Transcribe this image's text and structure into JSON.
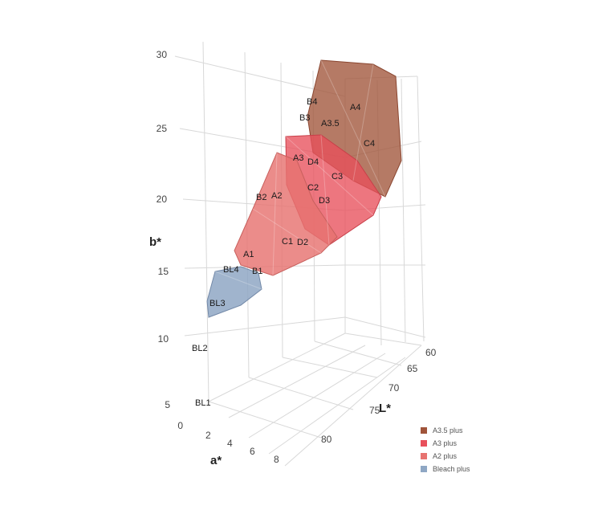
{
  "chart_data": {
    "type": "scatter3d",
    "axes": {
      "b": {
        "label": "b*",
        "ticks": [
          "30",
          "25",
          "20",
          "15",
          "10",
          "5",
          "0"
        ]
      },
      "L": {
        "label": "L*",
        "ticks": [
          "60",
          "65",
          "70",
          "75",
          "80"
        ]
      },
      "a": {
        "label": "a*",
        "ticks": [
          "2",
          "4",
          "6",
          "8"
        ]
      }
    },
    "series": [
      {
        "name": "A3.5 plus",
        "color": "#a0543a",
        "shades": [
          "B4",
          "A4",
          "B3",
          "A3.5",
          "C4"
        ]
      },
      {
        "name": "A3 plus",
        "color": "#e8505b",
        "shades": [
          "A3",
          "D4",
          "C3",
          "C2",
          "D3"
        ]
      },
      {
        "name": "A2 plus",
        "color": "#e77370",
        "shades": [
          "B2",
          "A2",
          "C1",
          "D2",
          "A1",
          "B1",
          "BL4"
        ]
      },
      {
        "name": "Bleach plus",
        "color": "#8fa7c4",
        "shades": [
          "BL3"
        ]
      }
    ],
    "outside_labels": [
      "BL2",
      "BL1"
    ]
  },
  "legend": [
    {
      "label": "A3.5 plus",
      "color": "#a0543a"
    },
    {
      "label": "A3 plus",
      "color": "#e8505b"
    },
    {
      "label": "A2 plus",
      "color": "#e77370"
    },
    {
      "label": "Bleach plus",
      "color": "#8fa7c4"
    }
  ]
}
